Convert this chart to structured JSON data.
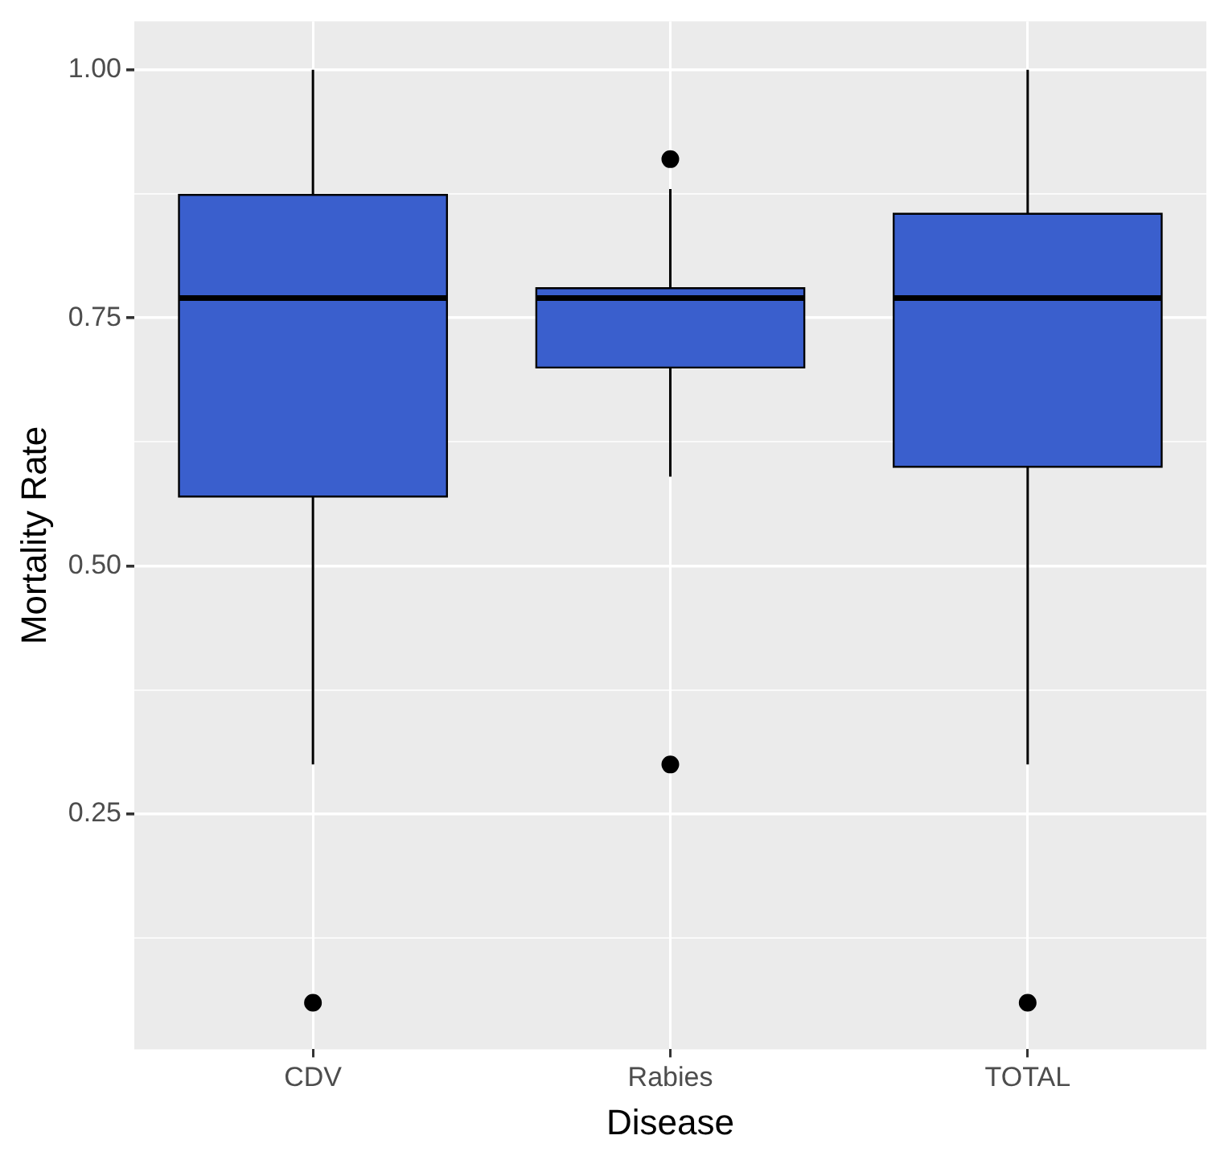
{
  "chart_data": {
    "type": "box",
    "xlabel": "Disease",
    "ylabel": "Mortality Rate",
    "categories": [
      "CDV",
      "Rabies",
      "TOTAL"
    ],
    "series": [
      {
        "color": "#3a5fcd",
        "boxes": [
          {
            "low": 0.3,
            "q1": 0.57,
            "median": 0.77,
            "q3": 0.874,
            "high": 1.0,
            "outliers": [
              0.06
            ]
          },
          {
            "low": 0.59,
            "q1": 0.7,
            "median": 0.77,
            "q3": 0.78,
            "high": 0.88,
            "outliers": [
              0.91,
              0.3
            ]
          },
          {
            "low": 0.3,
            "q1": 0.6,
            "median": 0.77,
            "q3": 0.855,
            "high": 1.0,
            "outliers": [
              0.06
            ]
          }
        ]
      }
    ],
    "ylim": [
      0.013,
      1.049
    ],
    "yticks": [
      {
        "value": 0.125,
        "label": null
      },
      {
        "value": 0.25,
        "label": "0.25"
      },
      {
        "value": 0.375,
        "label": null
      },
      {
        "value": 0.5,
        "label": "0.50"
      },
      {
        "value": 0.625,
        "label": null
      },
      {
        "value": 0.75,
        "label": "0.75"
      },
      {
        "value": 0.875,
        "label": null
      },
      {
        "value": 1.0,
        "label": "1.00"
      }
    ],
    "grid": true
  }
}
